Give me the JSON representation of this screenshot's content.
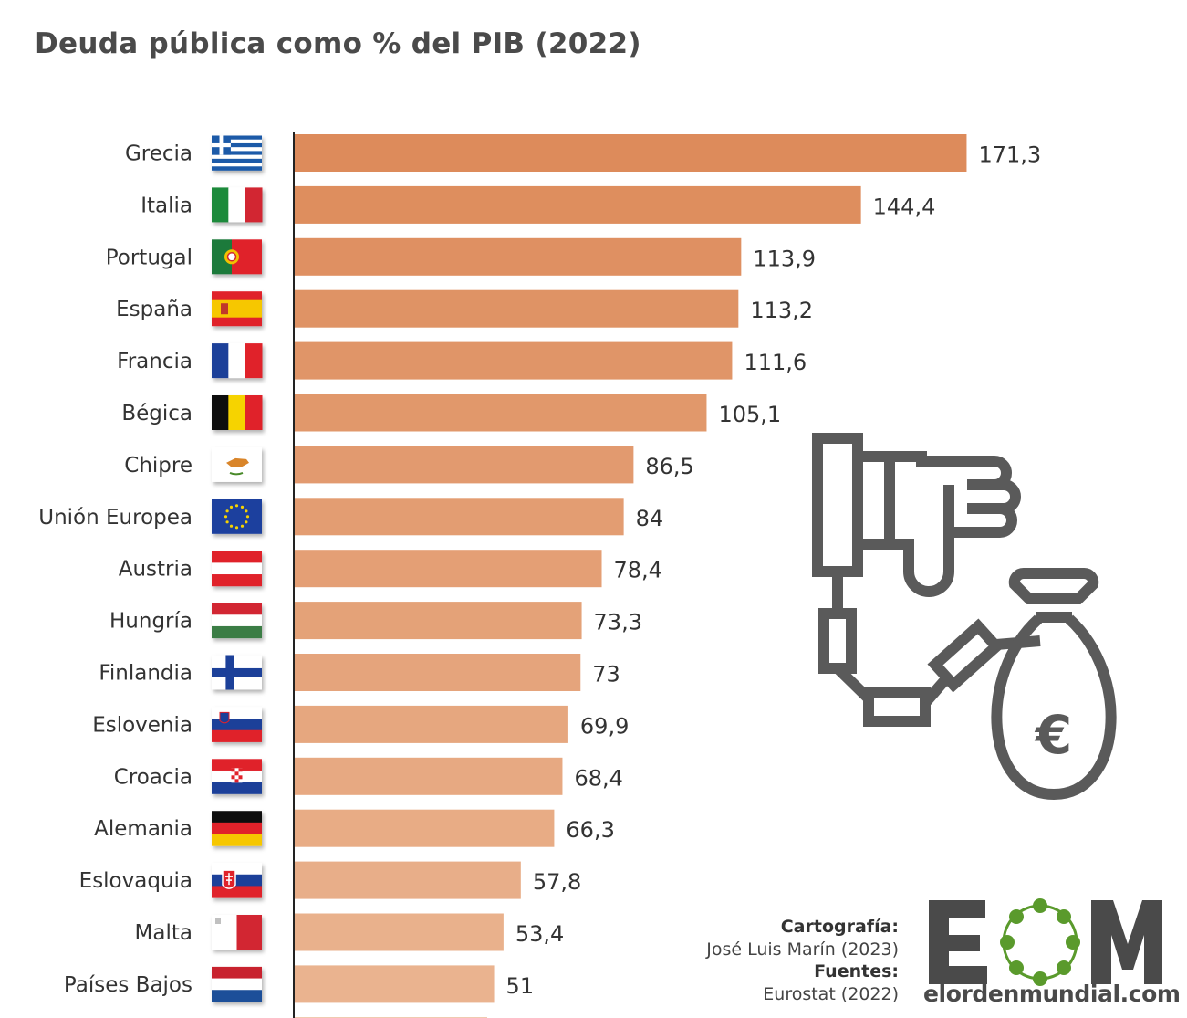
{
  "chart_data": {
    "type": "bar",
    "orientation": "horizontal",
    "title": "Deuda pública como % del PIB (2022)",
    "categories": [
      "Grecia",
      "Italia",
      "Portugal",
      "España",
      "Francia",
      "Bégica",
      "Chipre",
      "Unión Europea",
      "Austria",
      "Hungría",
      "Finlandia",
      "Eslovenia",
      "Croacia",
      "Alemania",
      "Eslovaquia",
      "Malta",
      "Países Bajos"
    ],
    "values": [
      171.3,
      144.4,
      113.9,
      113.2,
      111.6,
      105.1,
      86.5,
      84,
      78.4,
      73.3,
      73,
      69.9,
      68.4,
      66.3,
      57.8,
      53.4,
      51
    ],
    "value_labels": [
      "171,3",
      "144,4",
      "113,9",
      "113,2",
      "111,6",
      "105,1",
      "86,5",
      "84",
      "78,4",
      "73,3",
      "73",
      "69,9",
      "68,4",
      "66,3",
      "57,8",
      "53,4",
      "51"
    ],
    "flags": [
      "greece-flag-icon",
      "italy-flag-icon",
      "portugal-flag-icon",
      "spain-flag-icon",
      "france-flag-icon",
      "belgium-flag-icon",
      "cyprus-flag-icon",
      "eu-flag-icon",
      "austria-flag-icon",
      "hungary-flag-icon",
      "finland-flag-icon",
      "slovenia-flag-icon",
      "croatia-flag-icon",
      "germany-flag-icon",
      "slovakia-flag-icon",
      "malta-flag-icon",
      "netherlands-flag-icon"
    ],
    "bar_color_top": "#dd8b5b",
    "bar_color_bottom": "#eab38f",
    "xlim": [
      0,
      180
    ],
    "grid": false,
    "axis_color": "#222222"
  },
  "credits": {
    "cartography_label": "Cartografía:",
    "cartography_value": "José Luis Marín (2023)",
    "sources_label": "Fuentes:",
    "sources_value": "Eurostat (2022)"
  },
  "logo": {
    "text": "elordenmundial.com",
    "icon": "eom-logo-icon",
    "grey": "#4a4a4a",
    "green": "#5a9a2c"
  },
  "illustration": {
    "icon": "thumbs-down-debt-moneybag-icon",
    "color": "#5a5a5a"
  }
}
